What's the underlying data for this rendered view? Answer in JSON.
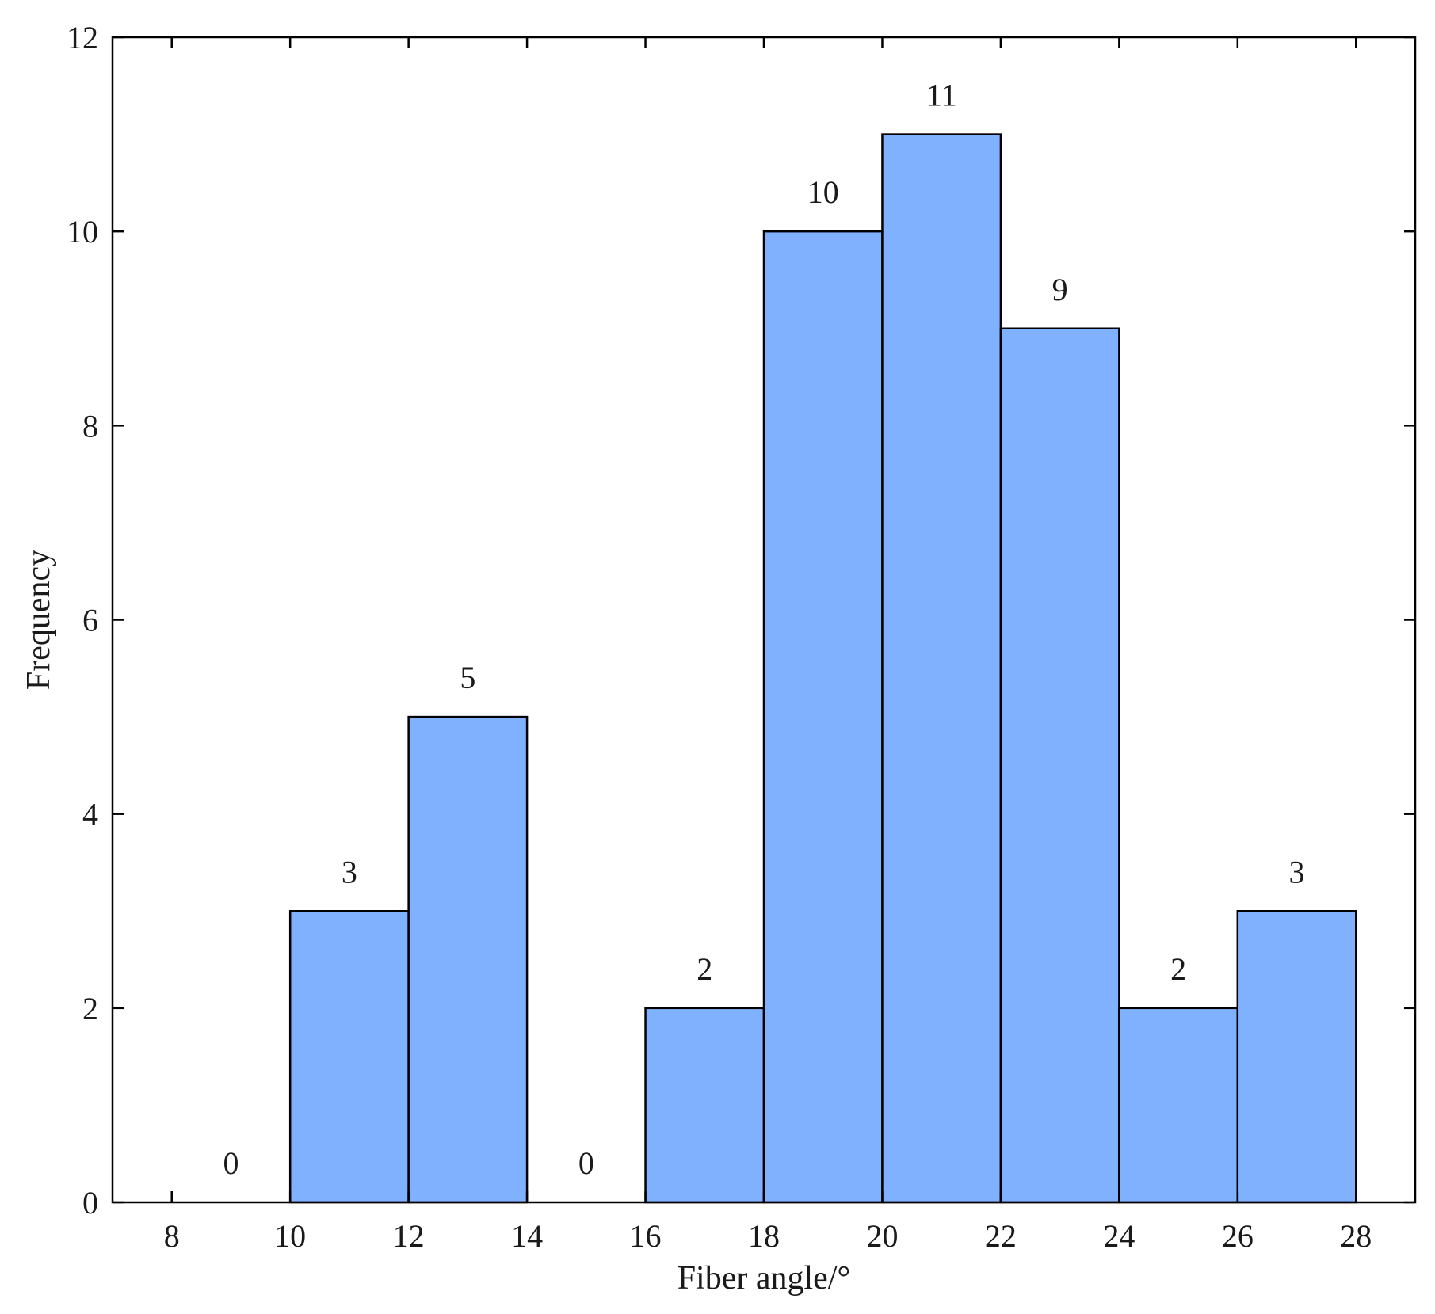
{
  "chart_data": {
    "type": "bar",
    "subtype": "histogram",
    "title": "",
    "xlabel": "Fiber angle/°",
    "ylabel": "Frequency",
    "xlim": [
      7,
      29
    ],
    "ylim": [
      0,
      12
    ],
    "xticks": [
      8,
      10,
      12,
      14,
      16,
      18,
      20,
      22,
      24,
      26,
      28
    ],
    "yticks": [
      0,
      2,
      4,
      6,
      8,
      10,
      12
    ],
    "bins": [
      {
        "x0": 8,
        "x1": 10,
        "value": 0
      },
      {
        "x0": 10,
        "x1": 12,
        "value": 3
      },
      {
        "x0": 12,
        "x1": 14,
        "value": 5
      },
      {
        "x0": 14,
        "x1": 16,
        "value": 0
      },
      {
        "x0": 16,
        "x1": 18,
        "value": 2
      },
      {
        "x0": 18,
        "x1": 20,
        "value": 10
      },
      {
        "x0": 20,
        "x1": 22,
        "value": 11
      },
      {
        "x0": 22,
        "x1": 24,
        "value": 9
      },
      {
        "x0": 24,
        "x1": 26,
        "value": 2
      },
      {
        "x0": 26,
        "x1": 28,
        "value": 3
      }
    ],
    "bar_color": "#80b1ff",
    "edge_color": "#000000",
    "grid": false,
    "legend": "none"
  }
}
